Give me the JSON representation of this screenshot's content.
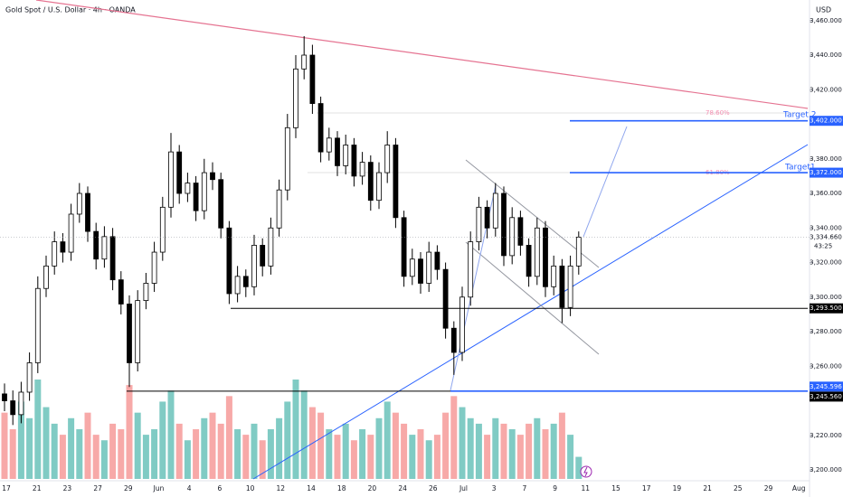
{
  "chart_data": {
    "type": "candlestick",
    "title": "Gold Spot / U.S. Dollar · 4h · OANDA",
    "currency": "USD",
    "ylim": [
      3194.8,
      3471.9
    ],
    "yticks": [
      {
        "value": 3460,
        "label": "3,460.000"
      },
      {
        "value": 3440,
        "label": "3,440.000"
      },
      {
        "value": 3420,
        "label": "3,420.000"
      },
      {
        "value": 3380,
        "label": "3,380.000"
      },
      {
        "value": 3360,
        "label": "3,360.000"
      },
      {
        "value": 3340,
        "label": "3,340.000"
      },
      {
        "value": 3320,
        "label": "3,320.000"
      },
      {
        "value": 3300,
        "label": "3,300.000"
      },
      {
        "value": 3280,
        "label": "3,280.000"
      },
      {
        "value": 3260,
        "label": "3,260.000"
      },
      {
        "value": 3220,
        "label": "3,220.000"
      },
      {
        "value": 3200,
        "label": "3,200.000"
      }
    ],
    "x_labels": [
      "17",
      "21",
      "23",
      "27",
      "29",
      "Jun",
      "4",
      "6",
      "10",
      "12",
      "14",
      "18",
      "20",
      "24",
      "26",
      "Jul",
      "3",
      "7",
      "9",
      "11",
      "15",
      "17",
      "19",
      "21",
      "25",
      "29",
      "Aug"
    ],
    "up_color": "#ffffff",
    "down_color": "#000000",
    "volume_up_color": "#80cbc4",
    "volume_down_color": "#f7a9a8",
    "open": [
      3244,
      3240,
      3232,
      3245,
      3262,
      3305,
      3318,
      3332,
      3326,
      3348,
      3360,
      3338,
      3322,
      3335,
      3310,
      3296,
      3262,
      3298,
      3308,
      3326,
      3352,
      3384,
      3360,
      3366,
      3350,
      3372,
      3368,
      3340,
      3302,
      3312,
      3306,
      3330,
      3318,
      3340,
      3362,
      3398,
      3432,
      3440,
      3412,
      3384,
      3392,
      3376,
      3388,
      3370,
      3378,
      3356,
      3372,
      3388,
      3346,
      3312,
      3322,
      3308,
      3326,
      3316,
      3282,
      3268,
      3300,
      3332,
      3352,
      3340,
      3360,
      3324,
      3346,
      3330,
      3312,
      3340,
      3306,
      3318,
      3294,
      3318
    ],
    "high": [
      3250,
      3246,
      3251,
      3268,
      3312,
      3324,
      3338,
      3337,
      3354,
      3366,
      3364,
      3343,
      3341,
      3340,
      3315,
      3301,
      3304,
      3314,
      3332,
      3358,
      3395,
      3388,
      3372,
      3370,
      3380,
      3378,
      3372,
      3344,
      3318,
      3316,
      3336,
      3334,
      3346,
      3368,
      3406,
      3440,
      3451,
      3446,
      3416,
      3398,
      3396,
      3394,
      3392,
      3384,
      3382,
      3378,
      3396,
      3392,
      3350,
      3328,
      3326,
      3332,
      3330,
      3320,
      3286,
      3306,
      3338,
      3358,
      3356,
      3366,
      3364,
      3352,
      3350,
      3334,
      3346,
      3344,
      3324,
      3322,
      3324,
      3338
    ],
    "low": [
      3234,
      3226,
      3227,
      3240,
      3256,
      3300,
      3313,
      3320,
      3321,
      3343,
      3332,
      3316,
      3317,
      3304,
      3290,
      3248,
      3257,
      3293,
      3303,
      3321,
      3346,
      3354,
      3355,
      3344,
      3345,
      3362,
      3334,
      3296,
      3297,
      3300,
      3301,
      3312,
      3313,
      3335,
      3356,
      3392,
      3426,
      3406,
      3378,
      3379,
      3370,
      3371,
      3364,
      3365,
      3350,
      3351,
      3366,
      3340,
      3306,
      3307,
      3302,
      3303,
      3310,
      3276,
      3255,
      3263,
      3295,
      3327,
      3334,
      3335,
      3318,
      3319,
      3324,
      3306,
      3307,
      3300,
      3301,
      3285,
      3289,
      3313
    ],
    "close": [
      3240,
      3232,
      3245,
      3262,
      3305,
      3318,
      3332,
      3326,
      3348,
      3360,
      3338,
      3322,
      3335,
      3310,
      3296,
      3262,
      3298,
      3308,
      3326,
      3352,
      3384,
      3360,
      3366,
      3350,
      3372,
      3368,
      3340,
      3302,
      3312,
      3306,
      3330,
      3318,
      3340,
      3362,
      3398,
      3432,
      3440,
      3412,
      3384,
      3392,
      3376,
      3388,
      3370,
      3378,
      3356,
      3372,
      3388,
      3346,
      3312,
      3322,
      3308,
      3326,
      3316,
      3282,
      3268,
      3300,
      3332,
      3352,
      3340,
      3360,
      3324,
      3346,
      3330,
      3312,
      3340,
      3306,
      3318,
      3294,
      3318,
      3334.66
    ],
    "volume": [
      60,
      45,
      70,
      55,
      90,
      65,
      50,
      40,
      55,
      45,
      60,
      40,
      35,
      50,
      45,
      85,
      60,
      40,
      45,
      70,
      80,
      50,
      35,
      45,
      55,
      60,
      50,
      75,
      45,
      40,
      50,
      35,
      45,
      55,
      70,
      90,
      80,
      65,
      60,
      45,
      40,
      50,
      35,
      45,
      40,
      55,
      70,
      60,
      50,
      40,
      45,
      35,
      40,
      60,
      75,
      65,
      55,
      50,
      40,
      55,
      50,
      45,
      40,
      50,
      55,
      45,
      50,
      60,
      40,
      20
    ],
    "price_label": {
      "value": 3334.66,
      "label": "3,334.660"
    },
    "countdown": "43:25",
    "levels": [
      {
        "value": 3402,
        "label": "3,402.000",
        "color": "#2962ff",
        "name": "Target 2"
      },
      {
        "value": 3372,
        "label": "3,372.000",
        "color": "#2962ff",
        "name": "Target1"
      },
      {
        "value": 3293.5,
        "label": "3,293.500",
        "color": "#000000"
      },
      {
        "value": 3245.596,
        "label": "3,245.596",
        "color": "#2962ff"
      },
      {
        "value": 3245.56,
        "label": "3,245.560",
        "color": "#000000"
      }
    ],
    "fib_labels": [
      "78.60%",
      "61.80%"
    ]
  }
}
